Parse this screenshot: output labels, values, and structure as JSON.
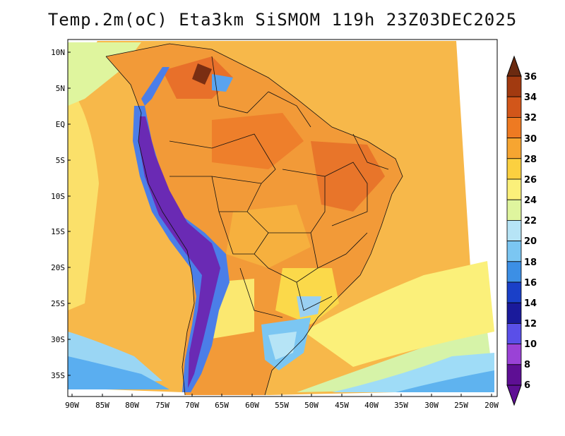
{
  "title": "Temp.2m(oC) Eta3km SiSMOM 119h 23Z03DEC2025",
  "lat_labels": [
    "10N",
    "5N",
    "EQ",
    "5S",
    "10S",
    "15S",
    "20S",
    "25S",
    "30S",
    "35S"
  ],
  "lon_labels": [
    "90W",
    "85W",
    "80W",
    "75W",
    "70W",
    "65W",
    "60W",
    "55W",
    "50W",
    "45W",
    "40W",
    "35W",
    "30W",
    "25W",
    "20W"
  ],
  "colorbar": {
    "labels": [
      "36",
      "34",
      "32",
      "30",
      "28",
      "26",
      "24",
      "22",
      "20",
      "18",
      "16",
      "14",
      "12",
      "10",
      "8",
      "6"
    ],
    "colors": [
      "#6b2a10",
      "#a23a10",
      "#d2561a",
      "#ee7a22",
      "#f6a531",
      "#fbd040",
      "#fbf07a",
      "#dff59e",
      "#b6e4f6",
      "#7bc6f2",
      "#3c8fe5",
      "#1a40c8",
      "#1a1a9b",
      "#5a4fe8",
      "#9a42d6",
      "#5e0f94"
    ]
  },
  "icons": {
    "arrow_up": "colorbar-top-arrow-icon",
    "arrow_down": "colorbar-bottom-arrow-icon"
  }
}
